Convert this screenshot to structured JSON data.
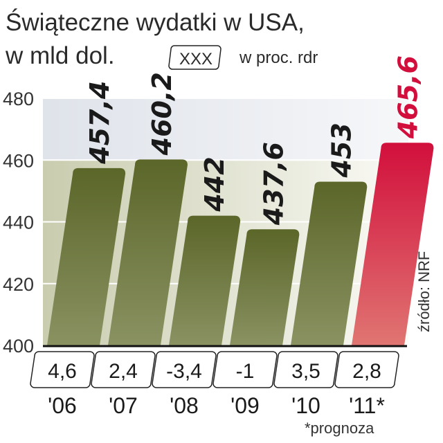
{
  "chart_data": {
    "type": "bar",
    "title": "Świąteczne wydatki w USA,",
    "subtitle": "w mld dol.",
    "legend_box": "XXX",
    "legend_text": "w proc. rdr",
    "categories": [
      "'06",
      "'07",
      "'08",
      "'09",
      "'10",
      "'11*"
    ],
    "values": [
      457.4,
      460.2,
      442,
      437.6,
      453,
      465.6
    ],
    "value_labels": [
      "457,4",
      "460,2",
      "442",
      "437,6",
      "453",
      "465,6"
    ],
    "growth_labels": [
      "4,6",
      "2,4",
      "-3,4",
      "-1",
      "3,5",
      "2,8"
    ],
    "growth_values": [
      4.6,
      2.4,
      -3.4,
      -1,
      3.5,
      2.8
    ],
    "yticks": [
      "400",
      "420",
      "440",
      "460",
      "480"
    ],
    "ylim": [
      400,
      480
    ],
    "grid": true,
    "highlight_index": 5,
    "colors": {
      "bar": "#5b6629",
      "bar_light": "#8a9262",
      "highlight": "#d20f3c",
      "highlight_light": "#e07572",
      "highlight_label": "#d20f3c"
    },
    "footnote": "*prognoza",
    "source": "źródło: NRF"
  }
}
